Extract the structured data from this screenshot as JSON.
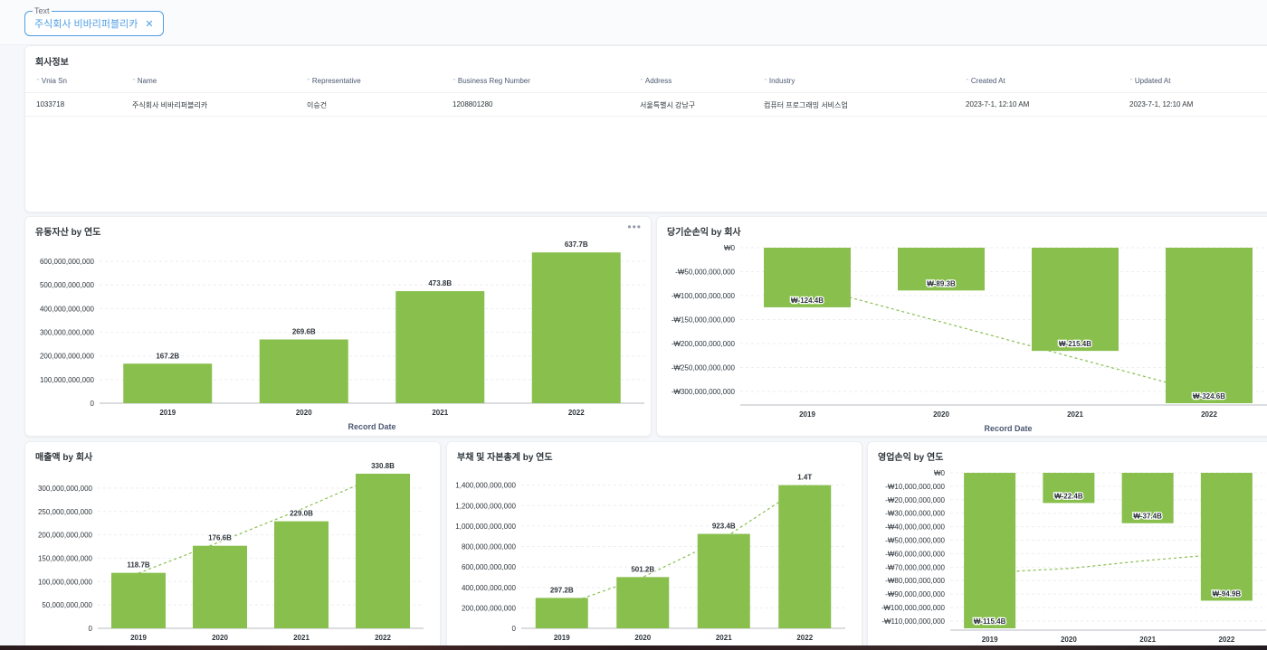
{
  "filter": {
    "label": "Text",
    "value": "주식회사 비바리퍼블리카"
  },
  "company_table": {
    "title": "회사정보",
    "columns": [
      "Vnia Sn",
      "Name",
      "Representative",
      "Business Reg Number",
      "Address",
      "Industry",
      "Created At",
      "Updated At"
    ],
    "rows": [
      [
        "1033718",
        "주식회사 비바리퍼블리카",
        "이승건",
        "1208801280",
        "서울특별시 강남구",
        "컴퓨터 프로그래밍 서비스업",
        "2023-7-1, 12:10 AM",
        "2023-7-1, 12:10 AM"
      ]
    ]
  },
  "chart_data": [
    {
      "id": "current-assets",
      "type": "bar",
      "title": "유동자산 by 연도",
      "xlabel": "Record Date",
      "ylabel": "",
      "categories": [
        "2019",
        "2020",
        "2021",
        "2022"
      ],
      "values": [
        167200000000,
        269600000000,
        473800000000,
        637700000000
      ],
      "value_labels": [
        "167.2B",
        "269.6B",
        "473.8B",
        "637.7B"
      ],
      "ylim": [
        0,
        650000000000
      ],
      "yticks": [
        0,
        100000000000,
        200000000000,
        300000000000,
        400000000000,
        500000000000,
        600000000000
      ],
      "ytick_labels": [
        "0",
        "100,000,000,000",
        "200,000,000,000",
        "300,000,000,000",
        "400,000,000,000",
        "500,000,000,000",
        "600,000,000,000"
      ],
      "trend": false,
      "grid": true,
      "color": "#88bf4d"
    },
    {
      "id": "net-income",
      "type": "bar",
      "title": "당기순손익 by 회사",
      "xlabel": "Record Date",
      "ylabel": "",
      "categories": [
        "2019",
        "2020",
        "2021",
        "2022"
      ],
      "values": [
        -124400000000,
        -89300000000,
        -215400000000,
        -324600000000
      ],
      "value_labels": [
        "₩-124.4B",
        "₩-89.3B",
        "₩-215.4B",
        "₩-324.6B"
      ],
      "ylim": [
        -324600000000,
        0
      ],
      "yticks": [
        0,
        -50000000000,
        -100000000000,
        -150000000000,
        -200000000000,
        -250000000000,
        -300000000000
      ],
      "ytick_labels": [
        "₩0",
        "-₩50,000,000,000",
        "-₩100,000,000,000",
        "-₩150,000,000,000",
        "-₩200,000,000,000",
        "-₩250,000,000,000",
        "-₩300,000,000,000"
      ],
      "trend": true,
      "trend_values": [
        -80000000000,
        -155000000000,
        -230000000000,
        -305000000000
      ],
      "grid": true,
      "color": "#88bf4d"
    },
    {
      "id": "revenue",
      "type": "bar",
      "title": "매출액 by 회사",
      "xlabel": "",
      "ylabel": "",
      "categories": [
        "2019",
        "2020",
        "2021",
        "2022"
      ],
      "values": [
        118700000000,
        176600000000,
        229000000000,
        330800000000
      ],
      "value_labels": [
        "118.7B",
        "176.6B",
        "229.0B",
        "330.8B"
      ],
      "ylim": [
        0,
        330800000000
      ],
      "yticks": [
        0,
        50000000000,
        100000000000,
        150000000000,
        200000000000,
        250000000000,
        300000000000
      ],
      "ytick_labels": [
        "0",
        "50,000,000,000",
        "100,000,000,000",
        "150,000,000,000",
        "200,000,000,000",
        "250,000,000,000",
        "300,000,000,000"
      ],
      "trend": true,
      "trend_values": [
        118000000000,
        185000000000,
        255000000000,
        330000000000
      ],
      "grid": true,
      "color": "#88bf4d"
    },
    {
      "id": "liabilities-equity",
      "type": "bar",
      "title": "부채 및 자본총계 by 연도",
      "xlabel": "",
      "ylabel": "",
      "categories": [
        "2019",
        "2020",
        "2021",
        "2022"
      ],
      "values": [
        297200000000,
        501200000000,
        923400000000,
        1400000000000
      ],
      "value_labels": [
        "297.2B",
        "501.2B",
        "923.4B",
        "1.4T"
      ],
      "ylim": [
        0,
        1450000000000
      ],
      "yticks": [
        0,
        200000000000,
        400000000000,
        600000000000,
        800000000000,
        1000000000000,
        1200000000000,
        1400000000000
      ],
      "ytick_labels": [
        "0",
        "200,000,000,000",
        "400,000,000,000",
        "600,000,000,000",
        "800,000,000,000",
        "1,000,000,000,000",
        "1,200,000,000,000",
        "1,400,000,000,000"
      ],
      "trend": true,
      "trend_values": [
        220000000000,
        500000000000,
        880000000000,
        1400000000000
      ],
      "grid": true,
      "color": "#88bf4d"
    },
    {
      "id": "operating-income",
      "type": "bar",
      "title": "영업손익 by 연도",
      "xlabel": "",
      "ylabel": "",
      "categories": [
        "2019",
        "2020",
        "2021",
        "2022"
      ],
      "values": [
        -115400000000,
        -22400000000,
        -37400000000,
        -94900000000
      ],
      "value_labels": [
        "₩-115.4B",
        "₩-22.4B",
        "₩-37.4B",
        "₩-94.9B"
      ],
      "ylim": [
        -115400000000,
        0
      ],
      "yticks": [
        0,
        -10000000000,
        -20000000000,
        -30000000000,
        -40000000000,
        -50000000000,
        -60000000000,
        -70000000000,
        -80000000000,
        -90000000000,
        -100000000000,
        -110000000000
      ],
      "ytick_labels": [
        "₩0",
        "-₩10,000,000,000",
        "-₩20,000,000,000",
        "-₩30,000,000,000",
        "-₩40,000,000,000",
        "-₩50,000,000,000",
        "-₩60,000,000,000",
        "-₩70,000,000,000",
        "-₩80,000,000,000",
        "-₩90,000,000,000",
        "-₩100,000,000,000",
        "-₩110,000,000,000"
      ],
      "trend": true,
      "trend_values": [
        -74000000000,
        -71000000000,
        -65000000000,
        -60000000000
      ],
      "grid": true,
      "color": "#88bf4d"
    }
  ]
}
